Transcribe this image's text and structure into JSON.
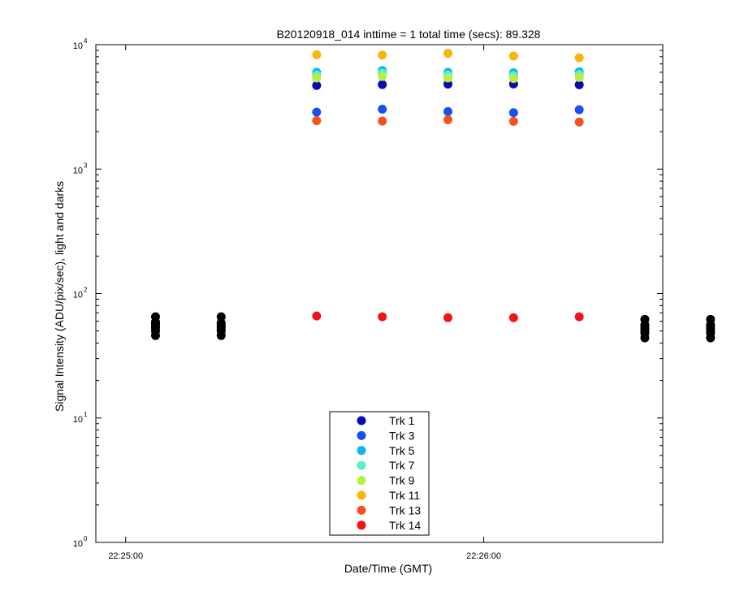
{
  "chart_data": {
    "type": "scatter",
    "title": "B20120918_014 inttime = 1 total time (secs): 89.328",
    "xlabel": "Date/Time (GMT)",
    "ylabel": "Signal Intensity (ADU/pix/sec), light and darks",
    "yscale": "log",
    "ylim": [
      1,
      10000
    ],
    "xlim": [
      "22:24:55",
      "22:26:30"
    ],
    "y_tick_base": "10",
    "y_ticks": [
      {
        "value": 1,
        "exponent": "0"
      },
      {
        "value": 10,
        "exponent": "1"
      },
      {
        "value": 100,
        "exponent": "2"
      },
      {
        "value": 1000,
        "exponent": "3"
      },
      {
        "value": 10000,
        "exponent": "4"
      }
    ],
    "x_ticks": [
      {
        "value": "22:25:00",
        "label": "22:25:00"
      },
      {
        "value": "22:26:00",
        "label": "22:26:00"
      }
    ],
    "x_times": [
      "22:25:32",
      "22:25:43",
      "22:25:54",
      "22:26:05",
      "22:26:16"
    ],
    "series": [
      {
        "name": "Trk 1",
        "color": "#0a0ab4",
        "values": [
          4700,
          4780,
          4820,
          4830,
          4760
        ]
      },
      {
        "name": "Trk 3",
        "color": "#1750f0",
        "values": [
          2870,
          3030,
          2900,
          2840,
          3000
        ]
      },
      {
        "name": "Trk 5",
        "color": "#0ab8f0",
        "values": [
          6000,
          6200,
          6000,
          5950,
          6050
        ]
      },
      {
        "name": "Trk 7",
        "color": "#5af0c8",
        "values": [
          5700,
          5900,
          5700,
          5650,
          5750
        ]
      },
      {
        "name": "Trk 9",
        "color": "#b4f03c",
        "values": [
          5400,
          5550,
          5400,
          5350,
          5450
        ]
      },
      {
        "name": "Trk 11",
        "color": "#fab40a",
        "values": [
          8300,
          8250,
          8500,
          8100,
          7850
        ]
      },
      {
        "name": "Trk 13",
        "color": "#f5501e",
        "values": [
          2450,
          2430,
          2490,
          2420,
          2390
        ]
      },
      {
        "name": "Trk 14",
        "color": "#f01414",
        "values": [
          66,
          65,
          64,
          64,
          65
        ]
      }
    ],
    "darks": {
      "color": "#000000",
      "x_times": [
        "22:25:05",
        "22:25:16",
        "22:26:27",
        "22:26:38"
      ],
      "values": [
        [
          46,
          50,
          53,
          55,
          57,
          59,
          65
        ],
        [
          46,
          50,
          52,
          54,
          56,
          58,
          65
        ],
        [
          44,
          48,
          50,
          52,
          54,
          56,
          62
        ],
        [
          44,
          48,
          50,
          52,
          54,
          56,
          62
        ]
      ]
    },
    "grid": false,
    "legend": {
      "placement": "bottom-center"
    }
  }
}
